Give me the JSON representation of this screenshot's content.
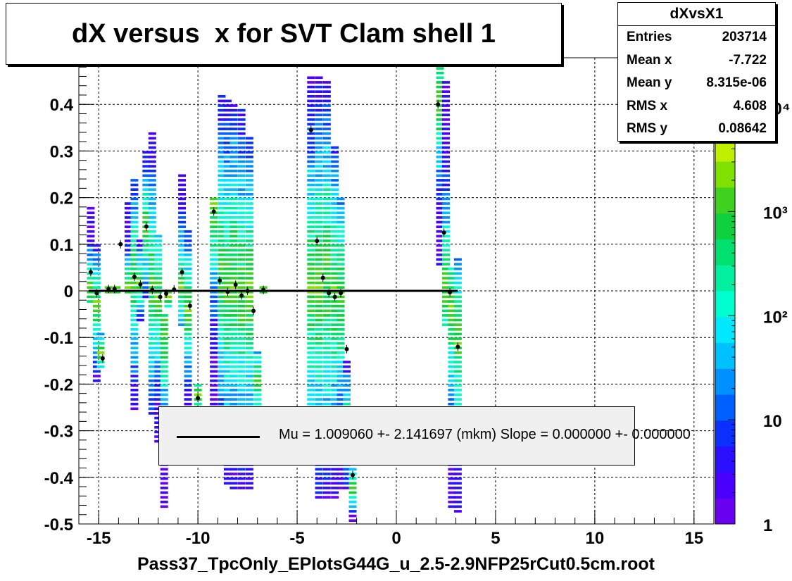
{
  "chart_data": {
    "type": "heatmap",
    "title": "dX versus  x for SVT Clam shell 1",
    "xlabel": "Pass37_TpcOnly_EPlotsG44G_u_2.5-2.9NFP25rCut0.5cm.root",
    "ylabel": "",
    "xlim": [
      -16.0,
      16.0
    ],
    "ylim": [
      -0.5,
      0.5
    ],
    "x_ticks": [
      -15,
      -10,
      -5,
      0,
      5,
      10,
      15
    ],
    "x_tick_labels": [
      "-15",
      "-10",
      "-5",
      "0",
      "5",
      "10",
      "15"
    ],
    "y_ticks": [
      -0.5,
      -0.4,
      -0.3,
      -0.2,
      -0.1,
      0,
      0.1,
      0.2,
      0.3,
      0.4
    ],
    "y_tick_labels": [
      "-0.5",
      "-0.4",
      "-0.3",
      "-0.2",
      "-0.1",
      "0",
      "0.1",
      "0.2",
      "0.3",
      "0.4"
    ],
    "grid": true,
    "color_scale": "log",
    "z_range": [
      1,
      30000
    ],
    "z_tick_labels": [
      "1",
      "10",
      "10²",
      "10³",
      "10⁴"
    ],
    "z_tick_values": [
      1,
      10,
      100,
      1000,
      10000
    ],
    "columns": [
      {
        "x": -15.4,
        "y_min": -0.03,
        "y_max": 0.18,
        "core_y": 0.0
      },
      {
        "x": -15.1,
        "y_min": -0.2,
        "y_max": 0.1,
        "core_y": -0.04
      },
      {
        "x": -14.9,
        "y_min": -0.17,
        "y_max": -0.09,
        "core_y": -0.14
      },
      {
        "x": -14.5,
        "y_min": -0.01,
        "y_max": 0.01,
        "core_y": 0.0
      },
      {
        "x": -14.1,
        "y_min": -0.01,
        "y_max": 0.01,
        "core_y": 0.0
      },
      {
        "x": -13.5,
        "y_min": -0.01,
        "y_max": 0.19,
        "core_y": 0.0
      },
      {
        "x": -13.2,
        "y_min": -0.26,
        "y_max": 0.24,
        "core_y": 0.02
      },
      {
        "x": -12.9,
        "y_min": -0.07,
        "y_max": 0.1,
        "core_y": 0.01
      },
      {
        "x": -12.6,
        "y_min": -0.02,
        "y_max": 0.3,
        "core_y": 0.13
      },
      {
        "x": -12.3,
        "y_min": -0.27,
        "y_max": 0.34,
        "core_y": 0.0
      },
      {
        "x": -12.0,
        "y_min": -0.33,
        "y_max": 0.12,
        "core_y": -0.02
      },
      {
        "x": -11.7,
        "y_min": -0.47,
        "y_max": -0.05,
        "core_y": -0.1
      },
      {
        "x": -11.5,
        "y_min": -0.04,
        "y_max": 0.0,
        "core_y": -0.02
      },
      {
        "x": -10.8,
        "y_min": -0.08,
        "y_max": 0.25,
        "core_y": 0.01
      },
      {
        "x": -10.5,
        "y_min": -0.25,
        "y_max": 0.13,
        "core_y": -0.05
      },
      {
        "x": -10.0,
        "y_min": -0.28,
        "y_max": -0.2,
        "core_y": -0.23
      },
      {
        "x": -9.2,
        "y_min": -0.35,
        "y_max": 0.2,
        "core_y": 0.18
      },
      {
        "x": -8.8,
        "y_min": -0.35,
        "y_max": 0.42,
        "core_y": 0.05
      },
      {
        "x": -8.5,
        "y_min": -0.42,
        "y_max": 0.41,
        "core_y": 0.0
      },
      {
        "x": -8.2,
        "y_min": -0.43,
        "y_max": 0.4,
        "core_y": 0.01
      },
      {
        "x": -7.8,
        "y_min": -0.43,
        "y_max": 0.39,
        "core_y": -0.01
      },
      {
        "x": -7.4,
        "y_min": -0.43,
        "y_max": 0.33,
        "core_y": -0.01
      },
      {
        "x": -7.0,
        "y_min": -0.33,
        "y_max": -0.13,
        "core_y": -0.2
      },
      {
        "x": -6.7,
        "y_min": -0.01,
        "y_max": 0.01,
        "core_y": 0.0
      },
      {
        "x": -4.3,
        "y_min": -0.37,
        "y_max": 0.46,
        "core_y": 0.0
      },
      {
        "x": -3.9,
        "y_min": -0.45,
        "y_max": 0.46,
        "core_y": 0.0
      },
      {
        "x": -3.5,
        "y_min": -0.45,
        "y_max": 0.45,
        "core_y": 0.02
      },
      {
        "x": -3.1,
        "y_min": -0.45,
        "y_max": 0.31,
        "core_y": -0.01
      },
      {
        "x": -2.8,
        "y_min": -0.43,
        "y_max": 0.2,
        "core_y": -0.02
      },
      {
        "x": -2.5,
        "y_min": -0.43,
        "y_max": -0.15,
        "core_y": -0.3
      },
      {
        "x": -2.2,
        "y_min": -0.5,
        "y_max": -0.38,
        "core_y": -0.43
      },
      {
        "x": 2.2,
        "y_min": 0.05,
        "y_max": 0.5,
        "core_y": 0.4
      },
      {
        "x": 2.5,
        "y_min": -0.08,
        "y_max": 0.45,
        "core_y": 0.0
      },
      {
        "x": 2.8,
        "y_min": -0.47,
        "y_max": 0.05,
        "core_y": -0.05
      },
      {
        "x": 3.1,
        "y_min": -0.48,
        "y_max": 0.07,
        "core_y": -0.12
      }
    ],
    "profile_points": [
      {
        "x": -15.4,
        "y": 0.04
      },
      {
        "x": -15.1,
        "y": -0.005
      },
      {
        "x": -14.8,
        "y": -0.145
      },
      {
        "x": -14.5,
        "y": 0.004
      },
      {
        "x": -14.2,
        "y": 0.004
      },
      {
        "x": -13.9,
        "y": 0.1
      },
      {
        "x": -13.2,
        "y": 0.03
      },
      {
        "x": -12.9,
        "y": 0.014
      },
      {
        "x": -12.6,
        "y": 0.138
      },
      {
        "x": -12.3,
        "y": 0.002
      },
      {
        "x": -11.9,
        "y": -0.013
      },
      {
        "x": -11.6,
        "y": -0.006
      },
      {
        "x": -11.2,
        "y": 0.003
      },
      {
        "x": -10.8,
        "y": 0.04
      },
      {
        "x": -10.4,
        "y": -0.032
      },
      {
        "x": -10.0,
        "y": -0.23
      },
      {
        "x": -9.2,
        "y": 0.17
      },
      {
        "x": -8.9,
        "y": 0.022
      },
      {
        "x": -8.5,
        "y": -0.002
      },
      {
        "x": -8.1,
        "y": 0.013
      },
      {
        "x": -7.8,
        "y": -0.01
      },
      {
        "x": -7.5,
        "y": 0.0
      },
      {
        "x": -7.2,
        "y": -0.043
      },
      {
        "x": -6.7,
        "y": 0.002
      },
      {
        "x": -4.3,
        "y": 0.345
      },
      {
        "x": -4.0,
        "y": 0.107
      },
      {
        "x": -3.7,
        "y": 0.028
      },
      {
        "x": -3.4,
        "y": -0.005
      },
      {
        "x": -3.1,
        "y": -0.013
      },
      {
        "x": -2.8,
        "y": -0.005
      },
      {
        "x": -2.5,
        "y": -0.125
      },
      {
        "x": -2.2,
        "y": -0.395
      },
      {
        "x": 2.1,
        "y": 0.4
      },
      {
        "x": 2.4,
        "y": 0.125
      },
      {
        "x": 2.7,
        "y": -0.003
      },
      {
        "x": 3.1,
        "y": -0.12
      }
    ],
    "fit_line": {
      "x0": -15.5,
      "x1": 3.1,
      "y": 0.0
    },
    "legend": {
      "text": "Mu = 1.009060 +- 2.141697 (mkm) Slope = 0.000000 +- 0.000000",
      "placement": "bottom-center"
    }
  },
  "stats": {
    "name": "dXvsX1",
    "rows": [
      {
        "label": "Entries",
        "value": "203714"
      },
      {
        "label": "Mean x",
        "value": "-7.722"
      },
      {
        "label": "Mean y",
        "value": "8.315e-06"
      },
      {
        "label": "RMS x",
        "value": "4.608"
      },
      {
        "label": "RMS y",
        "value": "0.08642"
      }
    ]
  }
}
